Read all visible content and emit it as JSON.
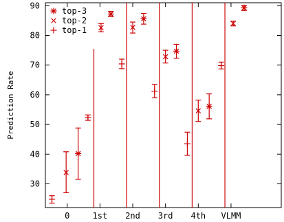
{
  "chart_data": {
    "type": "scatter",
    "title": "",
    "ylabel": "Prediction Rate",
    "xlabel": "",
    "ylim": [
      22,
      91
    ],
    "xlim": [
      0,
      10.8
    ],
    "yticks": [
      30,
      40,
      50,
      60,
      70,
      80,
      90
    ],
    "grid": false,
    "legend_position": "top-left",
    "color": "#cc0000",
    "x_tick_labels": [
      {
        "label": "0",
        "x": 1
      },
      {
        "label": "1st",
        "x": 2.5
      },
      {
        "label": "2nd",
        "x": 4
      },
      {
        "label": "3rd",
        "x": 5.5
      },
      {
        "label": "4th",
        "x": 7
      },
      {
        "label": "VLMM",
        "x": 8.5
      }
    ],
    "group_separators": [
      {
        "x": 2.22,
        "y_top": 75.5
      },
      {
        "x": 3.72
      },
      {
        "x": 5.22
      },
      {
        "x": 6.72
      },
      {
        "x": 8.22
      }
    ],
    "series": [
      {
        "name": "top-3",
        "marker": "star",
        "points": [
          {
            "x": 1.5,
            "y": 40.2,
            "low": 31.5,
            "high": 48.8
          },
          {
            "x": 3.0,
            "y": 87.2,
            "low": 86.3,
            "high": 88.1
          },
          {
            "x": 4.5,
            "y": 85.6,
            "low": 83.8,
            "high": 87.4
          },
          {
            "x": 6.0,
            "y": 74.7,
            "low": 72.3,
            "high": 77.0
          },
          {
            "x": 7.5,
            "y": 56.1,
            "low": 51.9,
            "high": 60.3
          },
          {
            "x": 9.1,
            "y": 89.3,
            "low": 88.4,
            "high": 90.1
          }
        ]
      },
      {
        "name": "top-2",
        "marker": "x",
        "points": [
          {
            "x": 0.95,
            "y": 33.8,
            "low": 27.0,
            "high": 40.8
          },
          {
            "x": 2.55,
            "y": 82.6,
            "low": 81.2,
            "high": 84.0
          },
          {
            "x": 4.0,
            "y": 82.7,
            "low": 80.8,
            "high": 84.5
          },
          {
            "x": 5.5,
            "y": 72.8,
            "low": 70.7,
            "high": 75.0
          },
          {
            "x": 7.0,
            "y": 54.6,
            "low": 51.0,
            "high": 58.2
          },
          {
            "x": 8.6,
            "y": 84.0,
            "low": 83.2,
            "high": 84.8
          }
        ]
      },
      {
        "name": "top-1",
        "marker": "plus",
        "points": [
          {
            "x": 0.3,
            "y": 24.8,
            "low": 23.5,
            "high": 26.0
          },
          {
            "x": 1.95,
            "y": 52.3,
            "low": 51.4,
            "high": 53.2
          },
          {
            "x": 3.5,
            "y": 70.4,
            "low": 68.8,
            "high": 72.0
          },
          {
            "x": 5.0,
            "y": 61.2,
            "low": 59.0,
            "high": 63.5
          },
          {
            "x": 6.5,
            "y": 43.5,
            "low": 39.6,
            "high": 47.4
          },
          {
            "x": 8.05,
            "y": 69.8,
            "low": 68.7,
            "high": 71.0
          }
        ]
      }
    ]
  }
}
